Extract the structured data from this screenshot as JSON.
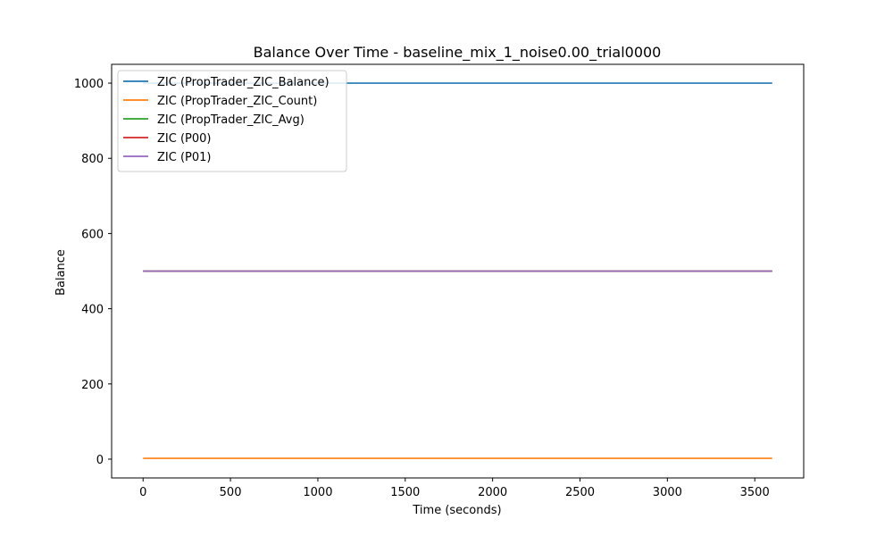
{
  "chart_data": {
    "type": "line",
    "title": "Balance Over Time - baseline_mix_1_noise0.00_trial0000",
    "xlabel": "Time (seconds)",
    "ylabel": "Balance",
    "xlim": [
      -180,
      3780
    ],
    "ylim": [
      -50,
      1050
    ],
    "xticks": [
      0,
      500,
      1000,
      1500,
      2000,
      2500,
      3000,
      3500
    ],
    "yticks": [
      0,
      200,
      400,
      600,
      800,
      1000
    ],
    "grid": false,
    "legend_placement": "upper-left",
    "series": [
      {
        "name": "ZIC (PropTrader_ZIC_Balance)",
        "color": "#1f77b4",
        "x": [
          0,
          3600
        ],
        "y": [
          1000,
          1000
        ]
      },
      {
        "name": "ZIC (PropTrader_ZIC_Count)",
        "color": "#ff7f0e",
        "x": [
          0,
          3600
        ],
        "y": [
          2,
          2
        ]
      },
      {
        "name": "ZIC (PropTrader_ZIC_Avg)",
        "color": "#2ca02c",
        "x": [
          0,
          3600
        ],
        "y": [
          500,
          500
        ]
      },
      {
        "name": "ZIC (P00)",
        "color": "#d62728",
        "x": [
          0,
          3600
        ],
        "y": [
          500,
          500
        ]
      },
      {
        "name": "ZIC (P01)",
        "color": "#9467bd",
        "x": [
          0,
          3600
        ],
        "y": [
          500,
          500
        ]
      }
    ]
  }
}
